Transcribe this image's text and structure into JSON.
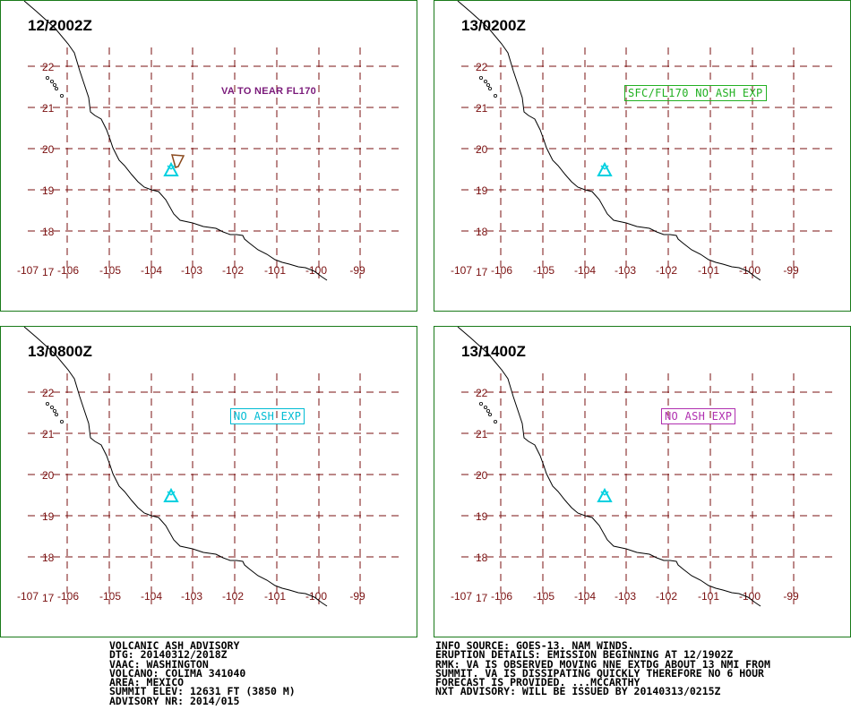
{
  "panels": [
    {
      "time": "12/2002Z",
      "label": "VA TO NEAR FL170",
      "label_color": "#7a1a7a",
      "boxed": false,
      "show_ash": true
    },
    {
      "time": "13/0200Z",
      "label": "SFC/FL170 NO ASH EXP",
      "label_color": "#22b022",
      "boxed": true,
      "show_ash": false
    },
    {
      "time": "13/0800Z",
      "label": "NO ASH EXP",
      "label_color": "#00bcd4",
      "boxed": true,
      "show_ash": false
    },
    {
      "time": "13/1400Z",
      "label": "NO ASH EXP",
      "label_color": "#b030b0",
      "boxed": true,
      "show_ash": false
    }
  ],
  "map": {
    "lat_labels": [
      "22",
      "21",
      "20",
      "19",
      "18",
      "17"
    ],
    "lon_labels": [
      "-107",
      "-106",
      "-105",
      "-104",
      "-103",
      "-102",
      "-101",
      "-100",
      "-99"
    ],
    "grid_color": "#7a1010",
    "volcano_color": "#00d0e0",
    "ash_color": "#8b4a1e"
  },
  "advisory_left": [
    "VOLCANIC ASH ADVISORY",
    "DTG: 20140312/2018Z",
    "VAAC: WASHINGTON",
    "VOLCANO: COLIMA 341040",
    "AREA: MEXICO",
    "SUMMIT ELEV: 12631 FT (3850 M)",
    "ADVISORY NR: 2014/015"
  ],
  "advisory_right": [
    "INFO SOURCE: GOES-13. NAM WINDS.",
    "ERUPTION DETAILS: EMISSION BEGINNING AT 12/1902Z",
    "RMK: VA IS OBSERVED MOVING NNE EXTDG ABOUT 13 NMI FROM",
    "SUMMIT. VA IS DISSIPATING QUICKLY THEREFORE NO 6 HOUR",
    "FORECAST IS PROVIDED. ...MCCARTHY",
    "NXT ADVISORY: WILL BE ISSUED BY 20140313/0215Z"
  ]
}
